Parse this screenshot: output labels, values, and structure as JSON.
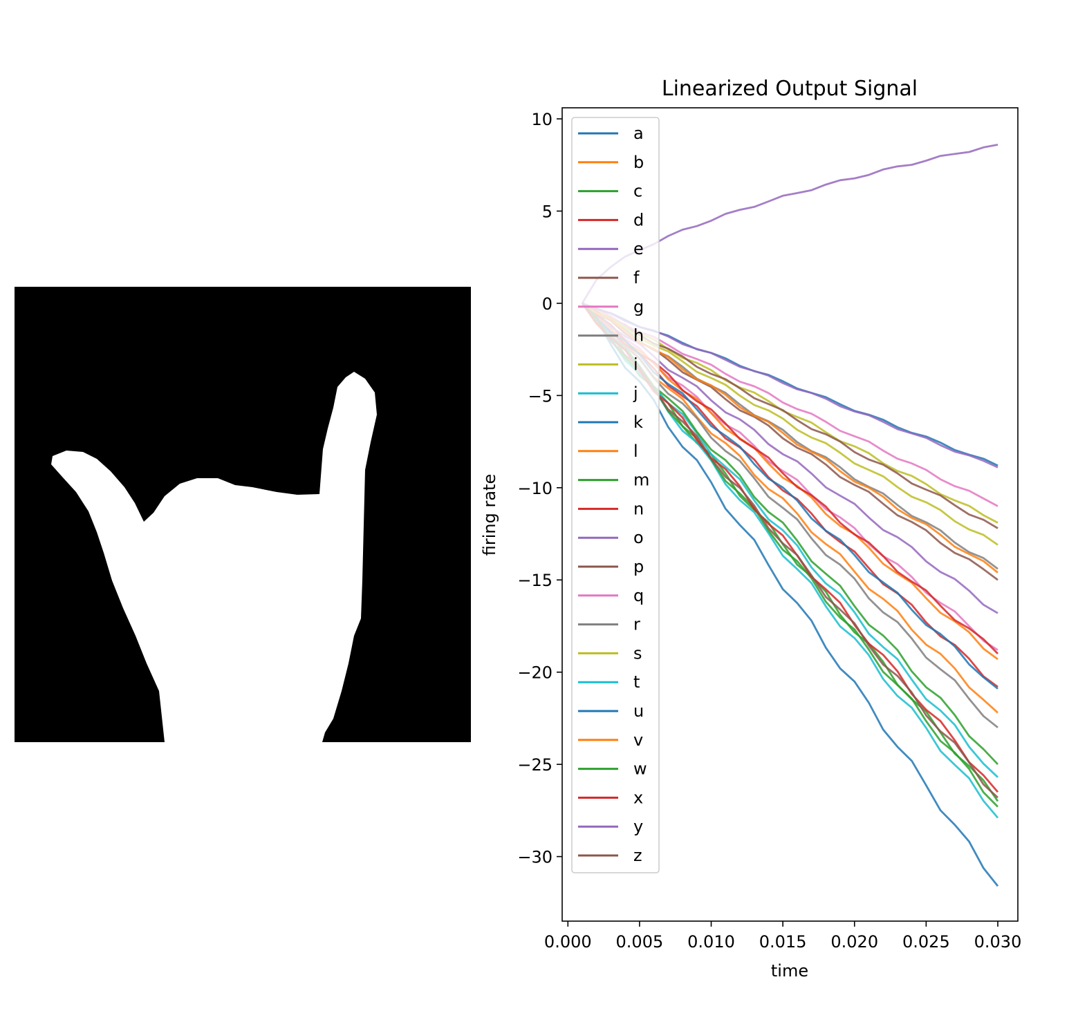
{
  "image_panel": {
    "background": "#000000",
    "foreground": "#ffffff"
  },
  "chart_data": {
    "type": "line",
    "title": "Linearized Output Signal",
    "xlabel": "time",
    "ylabel": "firing rate",
    "xlim": [
      -0.0004,
      0.0314
    ],
    "ylim": [
      -33.5,
      10.6
    ],
    "xticks": [
      0.0,
      0.005,
      0.01,
      0.015,
      0.02,
      0.025,
      0.03
    ],
    "xtick_labels": [
      "0.000",
      "0.005",
      "0.010",
      "0.015",
      "0.020",
      "0.025",
      "0.030"
    ],
    "yticks": [
      10,
      5,
      0,
      -5,
      -10,
      -15,
      -20,
      -25,
      -30
    ],
    "ytick_labels": [
      "10",
      "5",
      "0",
      "−5",
      "−10",
      "−15",
      "−20",
      "−25",
      "−30"
    ],
    "grid": false,
    "legend_position": "top-left",
    "x_start": 0.001,
    "x_end": 0.03,
    "series": [
      {
        "name": "a",
        "color": "#1f77b4",
        "end": -31.6,
        "curve": 0.0
      },
      {
        "name": "b",
        "color": "#ff7f0e",
        "end": -22.2,
        "curve": 0.0
      },
      {
        "name": "c",
        "color": "#2ca02c",
        "end": -27.0,
        "curve": 0.0
      },
      {
        "name": "d",
        "color": "#d62728",
        "end": -20.8,
        "curve": 0.0
      },
      {
        "name": "e",
        "color": "#9467bd",
        "end": 8.6,
        "curve": 0.45
      },
      {
        "name": "f",
        "color": "#8c564b",
        "end": -15.0,
        "curve": 0.0
      },
      {
        "name": "g",
        "color": "#e377c2",
        "end": -18.8,
        "curve": 0.0
      },
      {
        "name": "h",
        "color": "#7f7f7f",
        "end": -14.4,
        "curve": 0.0
      },
      {
        "name": "i",
        "color": "#bcbd22",
        "end": -11.9,
        "curve": 0.0
      },
      {
        "name": "j",
        "color": "#17becf",
        "end": -25.7,
        "curve": 0.0
      },
      {
        "name": "k",
        "color": "#1f77b4",
        "end": -8.8,
        "curve": 0.0
      },
      {
        "name": "l",
        "color": "#ff7f0e",
        "end": -19.3,
        "curve": 0.0
      },
      {
        "name": "m",
        "color": "#2ca02c",
        "end": -25.0,
        "curve": 0.0
      },
      {
        "name": "n",
        "color": "#d62728",
        "end": -19.0,
        "curve": 0.0
      },
      {
        "name": "o",
        "color": "#9467bd",
        "end": -16.8,
        "curve": 0.0
      },
      {
        "name": "p",
        "color": "#8c564b",
        "end": -12.2,
        "curve": 0.0
      },
      {
        "name": "q",
        "color": "#e377c2",
        "end": -11.0,
        "curve": 0.0
      },
      {
        "name": "r",
        "color": "#7f7f7f",
        "end": -23.0,
        "curve": 0.0
      },
      {
        "name": "s",
        "color": "#bcbd22",
        "end": -13.1,
        "curve": 0.0
      },
      {
        "name": "t",
        "color": "#17becf",
        "end": -27.9,
        "curve": 0.0
      },
      {
        "name": "u",
        "color": "#1f77b4",
        "end": -20.9,
        "curve": 0.0
      },
      {
        "name": "v",
        "color": "#ff7f0e",
        "end": -14.6,
        "curve": 0.0
      },
      {
        "name": "w",
        "color": "#2ca02c",
        "end": -27.3,
        "curve": 0.0
      },
      {
        "name": "x",
        "color": "#d62728",
        "end": -26.5,
        "curve": 0.0
      },
      {
        "name": "y",
        "color": "#9467bd",
        "end": -8.9,
        "curve": 0.0
      },
      {
        "name": "z",
        "color": "#8c564b",
        "end": -26.8,
        "curve": 0.0
      }
    ]
  }
}
